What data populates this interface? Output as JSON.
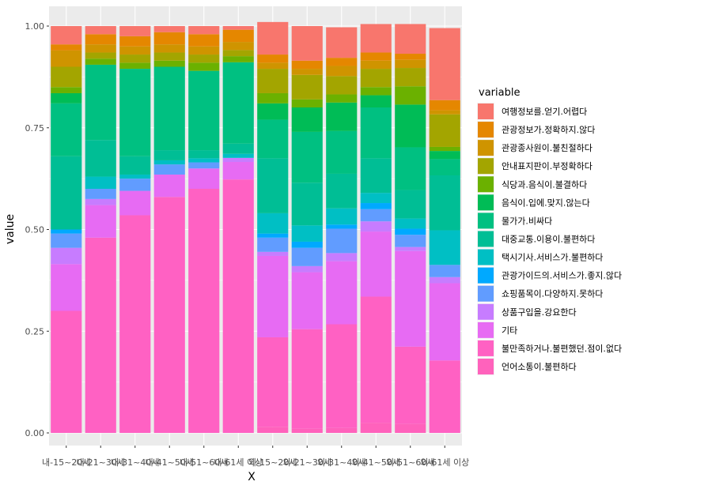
{
  "chart_data": {
    "type": "bar",
    "stacked": true,
    "xlabel": "X",
    "ylabel": "value",
    "ylim": [
      0,
      1
    ],
    "yticks": [
      "0.00",
      "0.25",
      "0.50",
      "0.75",
      "1.00"
    ],
    "grid": true,
    "legend_title": "variable",
    "legend_position": "right",
    "categories": [
      "내-15~20세",
      "내-21~30세",
      "내-31~40세",
      "내-41~50세",
      "내-51~60세",
      "내-61세 이상",
      "외-15~20세",
      "외-21~30세",
      "외-31~40세",
      "외-41~50세",
      "외-51~60세",
      "외-61세 이상"
    ],
    "series": [
      {
        "name": "언어소통이.불편하다",
        "color": "#FF62BC",
        "values": [
          0.0,
          0.0,
          0.0,
          0.0,
          0.0,
          0.0,
          0.015,
          0.01,
          0.012,
          0.025,
          0.022,
          0.0
        ]
      },
      {
        "name": "불만족하거나.불편했던.점이.없다",
        "color": "#FF61C3",
        "values": [
          0.3,
          0.48,
          0.535,
          0.58,
          0.6,
          0.623,
          0.22,
          0.245,
          0.255,
          0.31,
          0.19,
          0.178
        ]
      },
      {
        "name": "기타",
        "color": "#E76BF3",
        "values": [
          0.115,
          0.08,
          0.06,
          0.055,
          0.05,
          0.043,
          0.2,
          0.14,
          0.155,
          0.16,
          0.235,
          0.19
        ]
      },
      {
        "name": "상품구입을.강요한다",
        "color": "#C77CFF",
        "values": [
          0.04,
          0.015,
          0.0,
          0.0,
          0.0,
          0.01,
          0.01,
          0.015,
          0.02,
          0.025,
          0.01,
          0.015
        ]
      },
      {
        "name": "쇼핑품목이.다양하지.못하다",
        "color": "#619CFF",
        "values": [
          0.035,
          0.025,
          0.03,
          0.025,
          0.015,
          0.0,
          0.035,
          0.045,
          0.06,
          0.03,
          0.03,
          0.03
        ]
      },
      {
        "name": "관광가이드의.서비스가.좋지.않다",
        "color": "#00A9FF",
        "values": [
          0.01,
          0.0,
          0.0,
          0.0,
          0.0,
          0.0,
          0.01,
          0.015,
          0.01,
          0.015,
          0.015,
          0.0
        ]
      },
      {
        "name": "택시기사.서비스가.불편하다",
        "color": "#00BFC4",
        "values": [
          0.0,
          0.03,
          0.01,
          0.01,
          0.01,
          0.01,
          0.05,
          0.04,
          0.04,
          0.025,
          0.025,
          0.085
        ]
      },
      {
        "name": "대중교통.이용이.불편하다",
        "color": "#00BE95",
        "values": [
          0.18,
          0.09,
          0.045,
          0.025,
          0.02,
          0.025,
          0.135,
          0.105,
          0.085,
          0.085,
          0.07,
          0.135
        ]
      },
      {
        "name": "물가가.비싸다",
        "color": "#00C081",
        "values": [
          0.13,
          0.185,
          0.215,
          0.205,
          0.195,
          0.2,
          0.095,
          0.125,
          0.105,
          0.125,
          0.105,
          0.04
        ]
      },
      {
        "name": "음식이.입에.맞지.않는다",
        "color": "#00BC56",
        "values": [
          0.025,
          0.0,
          0.0,
          0.0,
          0.0,
          0.0,
          0.04,
          0.06,
          0.07,
          0.03,
          0.105,
          0.02
        ]
      },
      {
        "name": "식당과.음식이.불결하다",
        "color": "#6BB100",
        "values": [
          0.015,
          0.015,
          0.015,
          0.015,
          0.02,
          0.015,
          0.025,
          0.02,
          0.02,
          0.02,
          0.045,
          0.01
        ]
      },
      {
        "name": "안내표지판이.부정확하다",
        "color": "#A3A500",
        "values": [
          0.05,
          0.015,
          0.02,
          0.02,
          0.02,
          0.015,
          0.06,
          0.06,
          0.045,
          0.045,
          0.045,
          0.08
        ]
      },
      {
        "name": "관광종사원이.불친절하다",
        "color": "#CF9400",
        "values": [
          0.04,
          0.02,
          0.02,
          0.02,
          0.02,
          0.02,
          0.015,
          0.015,
          0.025,
          0.02,
          0.02,
          0.01
        ]
      },
      {
        "name": "관광정보가.정확하지.않다",
        "color": "#E58700",
        "values": [
          0.015,
          0.025,
          0.025,
          0.03,
          0.03,
          0.03,
          0.02,
          0.02,
          0.02,
          0.02,
          0.015,
          0.025
        ]
      },
      {
        "name": "여행정보를.얻기.어렵다",
        "color": "#F8766D",
        "values": [
          0.045,
          0.02,
          0.025,
          0.015,
          0.02,
          0.009,
          0.08,
          0.085,
          0.075,
          0.07,
          0.073,
          0.177
        ]
      }
    ],
    "legend_order": [
      "여행정보를.얻기.어렵다",
      "관광정보가.정확하지.않다",
      "관광종사원이.불친절하다",
      "안내표지판이.부정확하다",
      "식당과.음식이.불결하다",
      "음식이.입에.맞지.않는다",
      "물가가.비싸다",
      "대중교통.이용이.불편하다",
      "택시기사.서비스가.불편하다",
      "관광가이드의.서비스가.좋지.않다",
      "쇼핑품목이.다양하지.못하다",
      "상품구입을.강요한다",
      "기타",
      "불만족하거나.불편했던.점이.없다",
      "언어소통이.불편하다"
    ]
  }
}
